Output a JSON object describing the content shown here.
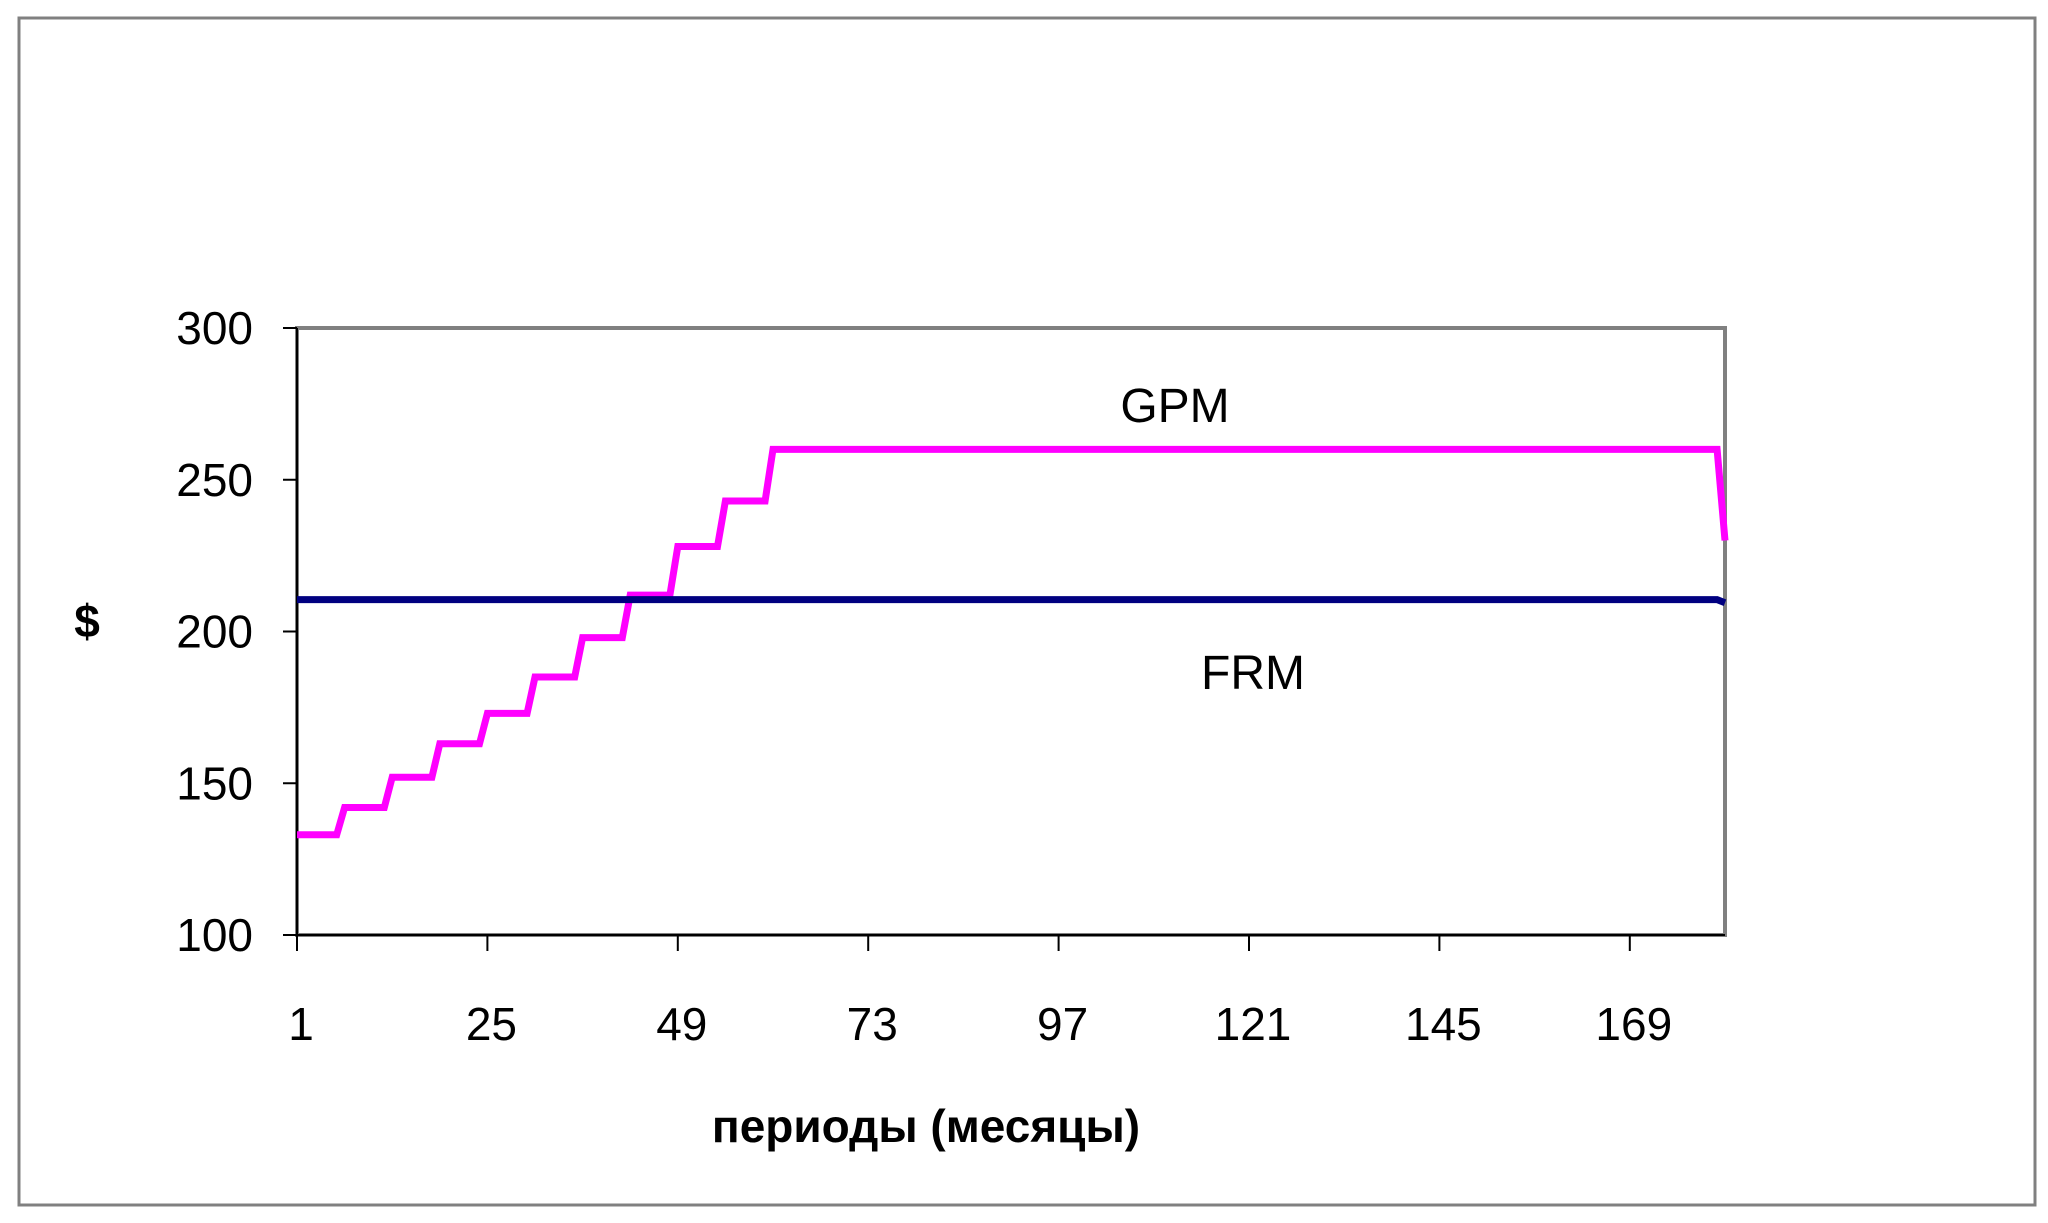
{
  "chart_data": {
    "type": "line",
    "title": "",
    "xlabel": "периоды (месяцы)",
    "ylabel": "$",
    "ylim": [
      100,
      300
    ],
    "xlim": [
      1,
      181
    ],
    "yticks": [
      100,
      150,
      200,
      250,
      300
    ],
    "xticks": [
      1,
      25,
      49,
      73,
      97,
      121,
      145,
      169
    ],
    "grid": false,
    "legend": "none",
    "series": [
      {
        "name": "GPM",
        "color": "#ff00ff",
        "x": [
          1,
          6,
          7,
          12,
          13,
          18,
          19,
          24,
          25,
          30,
          31,
          36,
          37,
          42,
          43,
          48,
          49,
          54,
          55,
          60,
          61,
          180,
          181
        ],
        "y": [
          133,
          133,
          142,
          142,
          152,
          152,
          163,
          163,
          173,
          173,
          185,
          185,
          198,
          198,
          212,
          212,
          228,
          228,
          243,
          243,
          260,
          260,
          230
        ]
      },
      {
        "name": "FRM",
        "color": "#000080",
        "x": [
          1,
          180,
          181
        ],
        "y": [
          210.5,
          210.5,
          209.5
        ]
      }
    ]
  }
}
